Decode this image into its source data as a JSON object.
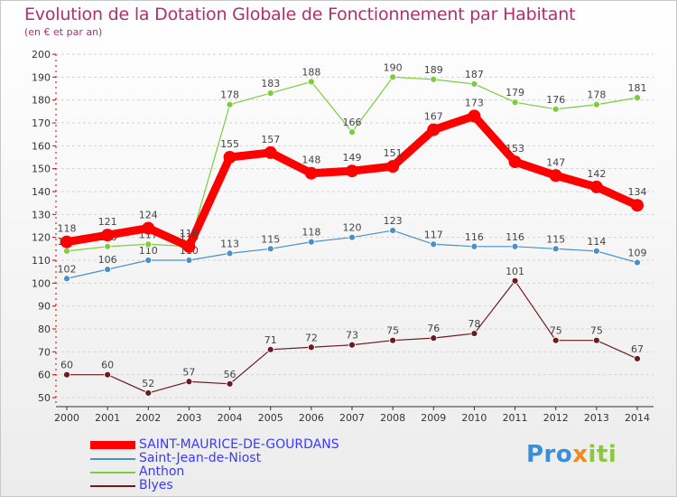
{
  "title": "Evolution de la Dotation Globale de Fonctionnement par Habitant",
  "subtitle": "(en € et par an)",
  "brand": {
    "part1": "Pro",
    "part2": "x",
    "part3": "iti"
  },
  "chart_data": {
    "type": "line",
    "title": "Evolution de la Dotation Globale de Fonctionnement par Habitant",
    "ylabel": "(en € et par an)",
    "xlabel": "",
    "x": [
      "2000",
      "2001",
      "2002",
      "2003",
      "2004",
      "2005",
      "2006",
      "2007",
      "2008",
      "2009",
      "2010",
      "2011",
      "2012",
      "2013",
      "2014"
    ],
    "ylim": [
      50,
      200
    ],
    "yticks": [
      50,
      60,
      70,
      80,
      90,
      100,
      110,
      120,
      130,
      140,
      150,
      160,
      170,
      180,
      190,
      200
    ],
    "grid": "horizontal-dashed",
    "series": [
      {
        "name": "Blyes",
        "color": "#6b1a22",
        "weight": "normal",
        "values": [
          60,
          60,
          52,
          57,
          56,
          71,
          72,
          73,
          75,
          76,
          78,
          101,
          75,
          75,
          67
        ]
      },
      {
        "name": "Saint-Jean-de-Niost",
        "color": "#4a90c8",
        "weight": "normal",
        "values": [
          102,
          106,
          110,
          110,
          113,
          115,
          118,
          120,
          123,
          117,
          116,
          116,
          115,
          114,
          109
        ]
      },
      {
        "name": "Anthon",
        "color": "#7ccc3c",
        "weight": "normal",
        "values": [
          114,
          116,
          117,
          116,
          178,
          183,
          188,
          166,
          190,
          189,
          187,
          179,
          176,
          178,
          181
        ]
      },
      {
        "name": "SAINT-MAURICE-DE-GOURDANS",
        "color": "#ff0000",
        "weight": "bold",
        "values": [
          118,
          121,
          124,
          116,
          155,
          157,
          148,
          149,
          151,
          167,
          173,
          153,
          147,
          142,
          134
        ]
      }
    ],
    "legend_order": [
      "SAINT-MAURICE-DE-GOURDANS",
      "Saint-Jean-de-Niost",
      "Anthon",
      "Blyes"
    ],
    "legend_colors": {
      "SAINT-MAURICE-DE-GOURDANS": "#3a3aff",
      "Saint-Jean-de-Niost": "#3a3aff",
      "Anthon": "#3a3aff",
      "Blyes": "#3a3aff"
    }
  }
}
